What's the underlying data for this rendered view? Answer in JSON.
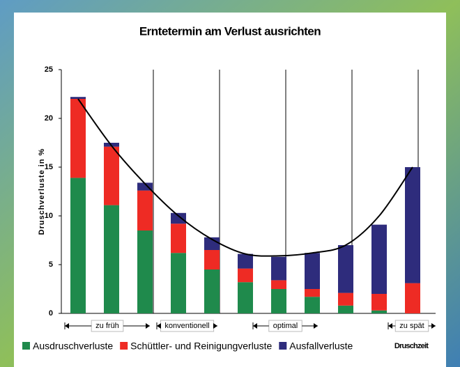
{
  "chart_data": {
    "type": "bar",
    "stacked": true,
    "title": "Erntetermin am Verlust ausrichten",
    "y_label": "Druschverluste in %",
    "x_label": "Druschzeit",
    "categories": [
      null,
      null,
      null,
      null,
      null,
      null,
      null,
      null,
      null,
      null,
      null
    ],
    "series": [
      {
        "name": "Ausdruschverluste",
        "color": "#1f8a4c",
        "values": [
          13.9,
          11.1,
          8.5,
          6.2,
          4.5,
          3.2,
          2.5,
          1.7,
          0.8,
          0.3,
          0
        ]
      },
      {
        "name": "Schüttler- und Reinigungverluste",
        "color": "#ee2b24",
        "values": [
          8.1,
          6.0,
          4.1,
          3.0,
          2.0,
          1.4,
          0.9,
          0.8,
          1.3,
          1.7,
          3.1
        ]
      },
      {
        "name": "Ausfallverluste",
        "color": "#2e2c7c",
        "values": [
          0.2,
          0.4,
          0.8,
          1.1,
          1.3,
          1.5,
          2.4,
          3.7,
          4.9,
          7.1,
          11.9
        ]
      }
    ],
    "line": {
      "color": "#000000",
      "values": [
        22,
        17.2,
        13.3,
        10,
        7.6,
        6.1,
        5.9,
        6.2,
        7.0,
        10,
        15
      ]
    },
    "annotations": [
      "zu früh",
      "konventionell",
      "optimal",
      "zu spät"
    ],
    "ylim": [
      0,
      25
    ],
    "yticks": [
      0,
      5,
      10,
      15,
      20,
      25
    ],
    "grid": true,
    "legend": "bottom"
  }
}
